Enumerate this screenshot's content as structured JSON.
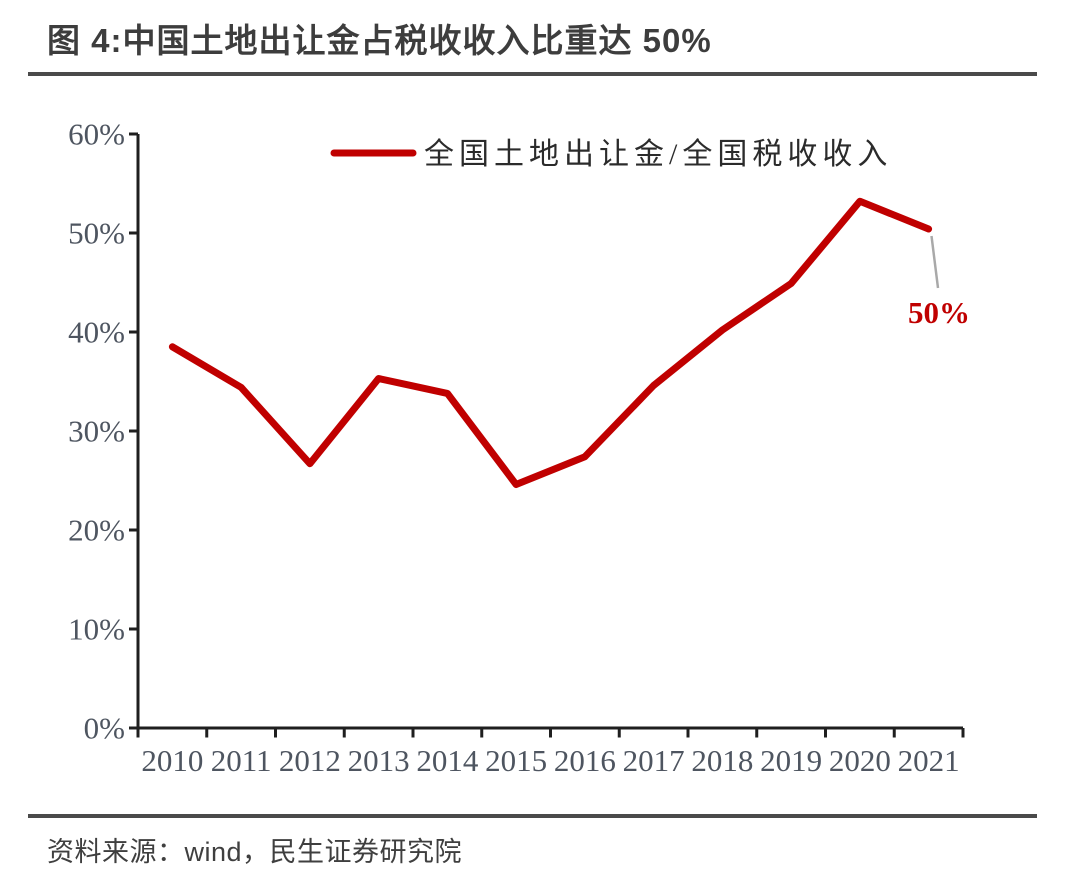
{
  "title": "图 4:中国土地出让金占税收收入比重达 50%",
  "legend": {
    "label": "全国土地出让金/全国税收收入"
  },
  "source": "资料来源：wind，民生证券研究院",
  "colors": {
    "series_line": "#c00000",
    "annotation_text": "#c00000",
    "leader_line": "#a9a9a9",
    "axis_line": "#1f1f1f",
    "tick_label": "#4e5560",
    "title_text": "#3d3d3d",
    "divider": "#4a4a4a",
    "legend_text": "#2b2b2b",
    "source_text": "#3f3f3f",
    "background": "#ffffff"
  },
  "chart_data": {
    "type": "line",
    "title": "图 4:中国土地出让金占税收收入比重达 50%",
    "categories": [
      "2010",
      "2011",
      "2012",
      "2013",
      "2014",
      "2015",
      "2016",
      "2017",
      "2018",
      "2019",
      "2020",
      "2021"
    ],
    "series": [
      {
        "name": "全国土地出让金/全国税收收入",
        "values": [
          38.5,
          34.4,
          26.7,
          35.3,
          33.8,
          24.6,
          27.4,
          34.6,
          40.2,
          44.9,
          53.2,
          50.4
        ]
      }
    ],
    "xlabel": "",
    "ylabel": "",
    "ylim": [
      0,
      60
    ],
    "yticks": [
      0,
      10,
      20,
      30,
      40,
      50,
      60
    ],
    "ytick_suffix": "%",
    "grid": false,
    "legend_position": "top-center",
    "annotations": [
      {
        "category": "2021",
        "value": 50.4,
        "text": "50%"
      }
    ]
  }
}
